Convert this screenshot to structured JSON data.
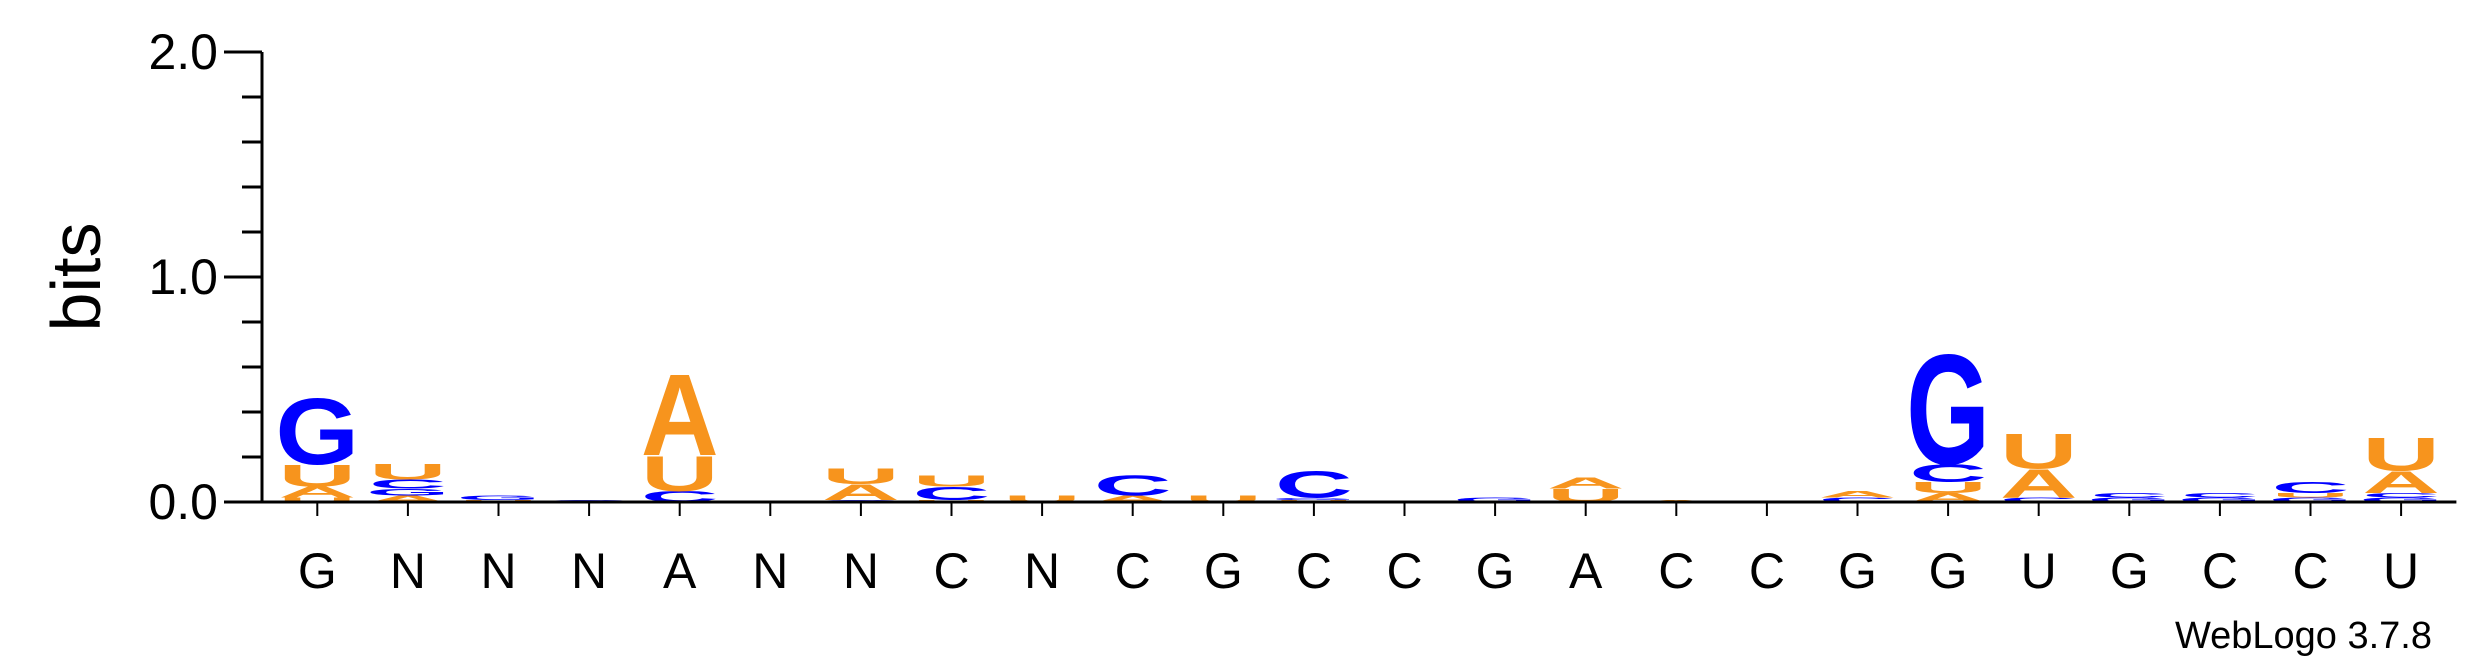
{
  "chart_data": {
    "type": "sequence-logo",
    "ylabel": "bits",
    "ylim": [
      0,
      2.0
    ],
    "yticks": [
      "0.0",
      "1.0",
      "2.0"
    ],
    "colors": {
      "A": "#f7941d",
      "U": "#f7941d",
      "G": "#0000ff",
      "C": "#0000ff"
    },
    "positions": [
      {
        "label": "G",
        "letters": [
          [
            "U",
            0.02
          ],
          [
            "A",
            0.05
          ],
          [
            "U",
            0.1
          ],
          [
            "G",
            0.3
          ]
        ]
      },
      {
        "label": "N",
        "letters": [
          [
            "A",
            0.03
          ],
          [
            "G",
            0.03
          ],
          [
            "C",
            0.04
          ],
          [
            "U",
            0.07
          ]
        ]
      },
      {
        "label": "N",
        "letters": [
          [
            "U",
            0.01
          ],
          [
            "G",
            0.02
          ]
        ]
      },
      {
        "label": "N",
        "letters": [
          [
            "G",
            0.01
          ]
        ]
      },
      {
        "label": "A",
        "letters": [
          [
            "C",
            0.05
          ],
          [
            "U",
            0.16
          ],
          [
            "A",
            0.37
          ]
        ]
      },
      {
        "label": "N",
        "letters": []
      },
      {
        "label": "N",
        "letters": [
          [
            "G",
            0.01
          ],
          [
            "A",
            0.07
          ],
          [
            "U",
            0.07
          ]
        ]
      },
      {
        "label": "C",
        "letters": [
          [
            "U",
            0.01
          ],
          [
            "C",
            0.06
          ],
          [
            "U",
            0.05
          ]
        ]
      },
      {
        "label": "N",
        "letters": [
          [
            "U",
            0.03
          ]
        ]
      },
      {
        "label": "C",
        "letters": [
          [
            "A",
            0.03
          ],
          [
            "C",
            0.09
          ]
        ]
      },
      {
        "label": "G",
        "letters": [
          [
            "U",
            0.03
          ]
        ]
      },
      {
        "label": "C",
        "letters": [
          [
            "U",
            0.01
          ],
          [
            "G",
            0.01
          ],
          [
            "C",
            0.12
          ]
        ]
      },
      {
        "label": "C",
        "letters": []
      },
      {
        "label": "G",
        "letters": [
          [
            "G",
            0.02
          ]
        ]
      },
      {
        "label": "A",
        "letters": [
          [
            "U",
            0.06
          ],
          [
            "A",
            0.05
          ]
        ]
      },
      {
        "label": "C",
        "letters": [
          [
            "A",
            0.01
          ]
        ]
      },
      {
        "label": "C",
        "letters": []
      },
      {
        "label": "G",
        "letters": [
          [
            "C",
            0.02
          ],
          [
            "A",
            0.03
          ]
        ]
      },
      {
        "label": "G",
        "letters": [
          [
            "A",
            0.04
          ],
          [
            "U",
            0.05
          ],
          [
            "C",
            0.08
          ],
          [
            "G",
            0.5
          ]
        ]
      },
      {
        "label": "U",
        "letters": [
          [
            "C",
            0.02
          ],
          [
            "A",
            0.13
          ],
          [
            "U",
            0.16
          ]
        ]
      },
      {
        "label": "G",
        "letters": [
          [
            "G",
            0.02
          ],
          [
            "C",
            0.02
          ]
        ]
      },
      {
        "label": "C",
        "letters": [
          [
            "G",
            0.02
          ],
          [
            "C",
            0.02
          ]
        ]
      },
      {
        "label": "C",
        "letters": [
          [
            "G",
            0.02
          ],
          [
            "U",
            0.02
          ],
          [
            "C",
            0.05
          ]
        ]
      },
      {
        "label": "U",
        "letters": [
          [
            "G",
            0.02
          ],
          [
            "C",
            0.02
          ],
          [
            "A",
            0.1
          ],
          [
            "U",
            0.15
          ]
        ]
      }
    ]
  },
  "footer": "WebLogo 3.7.8"
}
